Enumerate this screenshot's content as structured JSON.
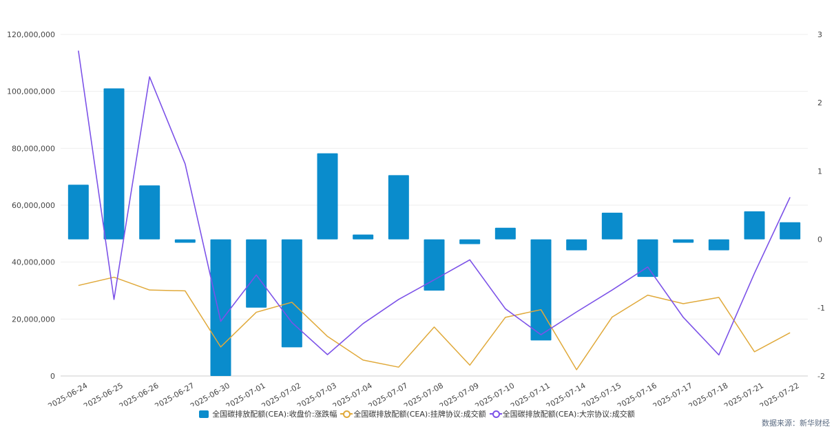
{
  "chart_data": {
    "type": "bar+line",
    "categories": [
      "2025-06-24",
      "2025-06-25",
      "2025-06-26",
      "2025-06-27",
      "2025-06-30",
      "2025-07-01",
      "2025-07-02",
      "2025-07-03",
      "2025-07-04",
      "2025-07-07",
      "2025-07-08",
      "2025-07-09",
      "2025-07-10",
      "2025-07-11",
      "2025-07-14",
      "2025-07-15",
      "2025-07-16",
      "2025-07-17",
      "2025-07-18",
      "2025-07-21",
      "2025-07-22"
    ],
    "left_axis": {
      "min": 0,
      "max": 120000000,
      "ticks": [
        "0",
        "20,000,000",
        "40,000,000",
        "60,000,000",
        "80,000,000",
        "100,000,000",
        "120,000,000"
      ]
    },
    "right_axis": {
      "min": -2,
      "max": 3,
      "ticks": [
        "-2",
        "-1",
        "0",
        "1",
        "2",
        "3"
      ]
    },
    "series": [
      {
        "name": "全国碳排放配额(CEA):收盘价:涨跌幅",
        "type": "bar",
        "axis": "right",
        "color": "#0a8ccc",
        "values": [
          0.8,
          2.21,
          0.79,
          -0.05,
          -2.0,
          -1.0,
          -1.58,
          1.26,
          0.07,
          0.94,
          -0.75,
          -0.07,
          0.17,
          -1.48,
          -0.16,
          0.39,
          -0.55,
          -0.05,
          -0.16,
          0.41,
          0.25
        ]
      },
      {
        "name": "全国碳排放配额(CEA):挂牌协议:成交额",
        "type": "line",
        "axis": "left",
        "color": "#e0a93a",
        "values": [
          31800000,
          34700000,
          30200000,
          29900000,
          10200000,
          22400000,
          25900000,
          13900000,
          5600000,
          3100000,
          17200000,
          3800000,
          20600000,
          23300000,
          2200000,
          20700000,
          28400000,
          25400000,
          27600000,
          8500000,
          15200000
        ]
      },
      {
        "name": "全国碳排放配额(CEA):大宗协议:成交额",
        "type": "line",
        "axis": "left",
        "color": "#7c52e8",
        "values": [
          114300000,
          26900000,
          105100000,
          74500000,
          19200000,
          35500000,
          18800000,
          7500000,
          18400000,
          26900000,
          33800000,
          40800000,
          23600000,
          14500000,
          22500000,
          30200000,
          38300000,
          20600000,
          7400000,
          36100000,
          62800000
        ]
      }
    ]
  },
  "legend": {
    "bar_label": "全国碳排放配额(CEA):收盘价:涨跌幅",
    "line1_label": "全国碳排放配额(CEA):挂牌协议:成交额",
    "line2_label": "全国碳排放配额(CEA):大宗协议:成交额"
  },
  "colors": {
    "bar": "#0a8ccc",
    "line1": "#e0a93a",
    "line2": "#7c52e8",
    "grid": "#eeeeee",
    "axis_text": "#444444"
  },
  "source": "数据来源：新华财经"
}
